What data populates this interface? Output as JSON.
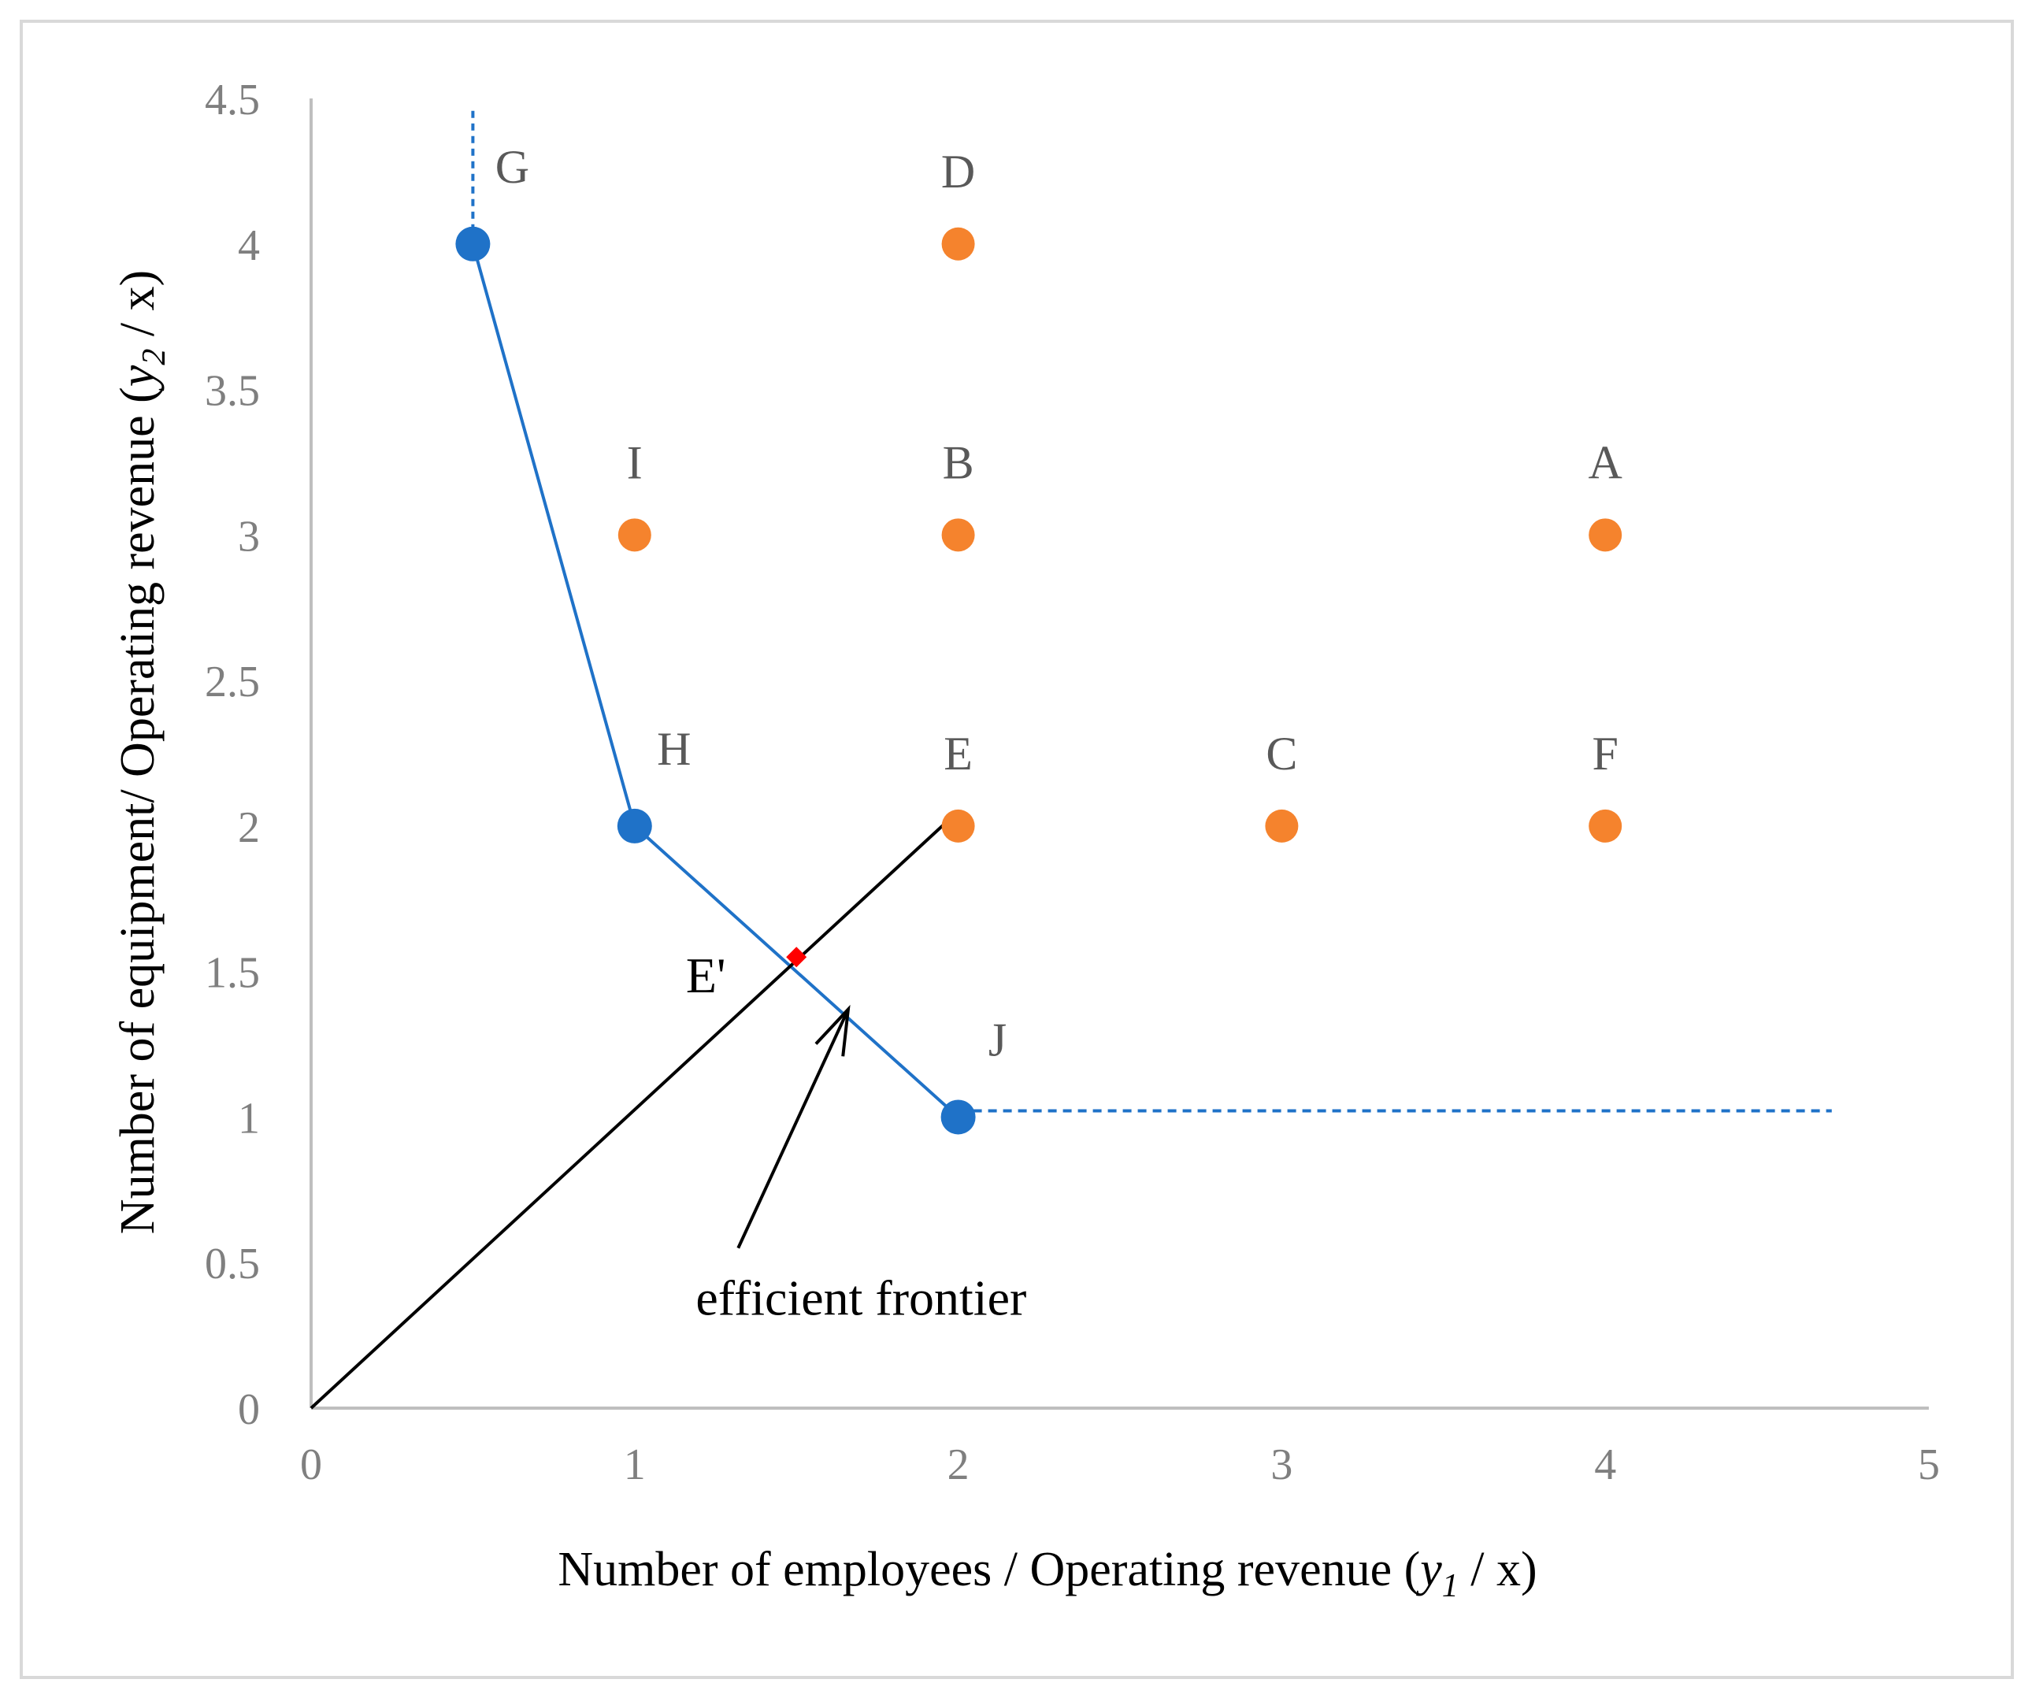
{
  "chart_data": {
    "type": "scatter",
    "xlabel": {
      "prefix": "Number of employees / Operating revenue (",
      "var": "y",
      "sub": "1",
      "suffix": " / x)"
    },
    "ylabel": {
      "prefix": "Number of equipment/ Operating revenue (",
      "var": "y",
      "sub": "2",
      "suffix": " / x)"
    },
    "xlim": [
      0,
      5
    ],
    "ylim": [
      0,
      4.5
    ],
    "xticks": [
      {
        "value": 0,
        "label": "0"
      },
      {
        "value": 1,
        "label": "1"
      },
      {
        "value": 2,
        "label": "2"
      },
      {
        "value": 3,
        "label": "3"
      },
      {
        "value": 4,
        "label": "4"
      },
      {
        "value": 5,
        "label": "5"
      }
    ],
    "yticks": [
      {
        "value": 0,
        "label": "0"
      },
      {
        "value": 0.5,
        "label": "0.5"
      },
      {
        "value": 1,
        "label": "1"
      },
      {
        "value": 1.5,
        "label": "1.5"
      },
      {
        "value": 2,
        "label": "2"
      },
      {
        "value": 2.5,
        "label": "2.5"
      },
      {
        "value": 3,
        "label": "3"
      },
      {
        "value": 3.5,
        "label": "3.5"
      },
      {
        "value": 4,
        "label": "4"
      },
      {
        "value": 4.5,
        "label": "4.5"
      }
    ],
    "grid": false,
    "colors": {
      "efficient": "#1f72c8",
      "inefficient": "#f5832d",
      "projection": "#ff0000",
      "ray": "#000000",
      "axis": "#bfbfbf",
      "border": "#d9d9d9"
    },
    "series": [
      {
        "name": "efficient",
        "points": [
          {
            "label": "G",
            "x": 0.5,
            "y": 4
          },
          {
            "label": "H",
            "x": 1,
            "y": 2
          },
          {
            "label": "J",
            "x": 2,
            "y": 1
          }
        ]
      },
      {
        "name": "inefficient",
        "points": [
          {
            "label": "D",
            "x": 2,
            "y": 4
          },
          {
            "label": "I",
            "x": 1,
            "y": 3
          },
          {
            "label": "B",
            "x": 2,
            "y": 3
          },
          {
            "label": "A",
            "x": 4,
            "y": 3
          },
          {
            "label": "E",
            "x": 2,
            "y": 2
          },
          {
            "label": "C",
            "x": 3,
            "y": 2
          },
          {
            "label": "F",
            "x": 4,
            "y": 2
          }
        ]
      }
    ],
    "frontier": {
      "segments": [
        [
          0.5,
          4
        ],
        [
          1,
          2
        ],
        [
          2,
          1
        ]
      ],
      "vertical_extension": {
        "x": 0.5,
        "from_y": 4,
        "to_y": 4.5
      },
      "horizontal_extension": {
        "y": 1,
        "from_x": 2,
        "to_x": 4.7
      }
    },
    "ray": {
      "from": [
        0,
        0
      ],
      "to": [
        1.97,
        2.02
      ]
    },
    "projection": {
      "label": "E'",
      "x": 1.5,
      "y": 1.55
    },
    "annotation": {
      "text": "efficient frontier",
      "arrow_from": [
        1.32,
        0.55
      ],
      "arrow_to": [
        1.66,
        1.37
      ],
      "text_at": [
        1.7,
        0.32
      ]
    }
  }
}
